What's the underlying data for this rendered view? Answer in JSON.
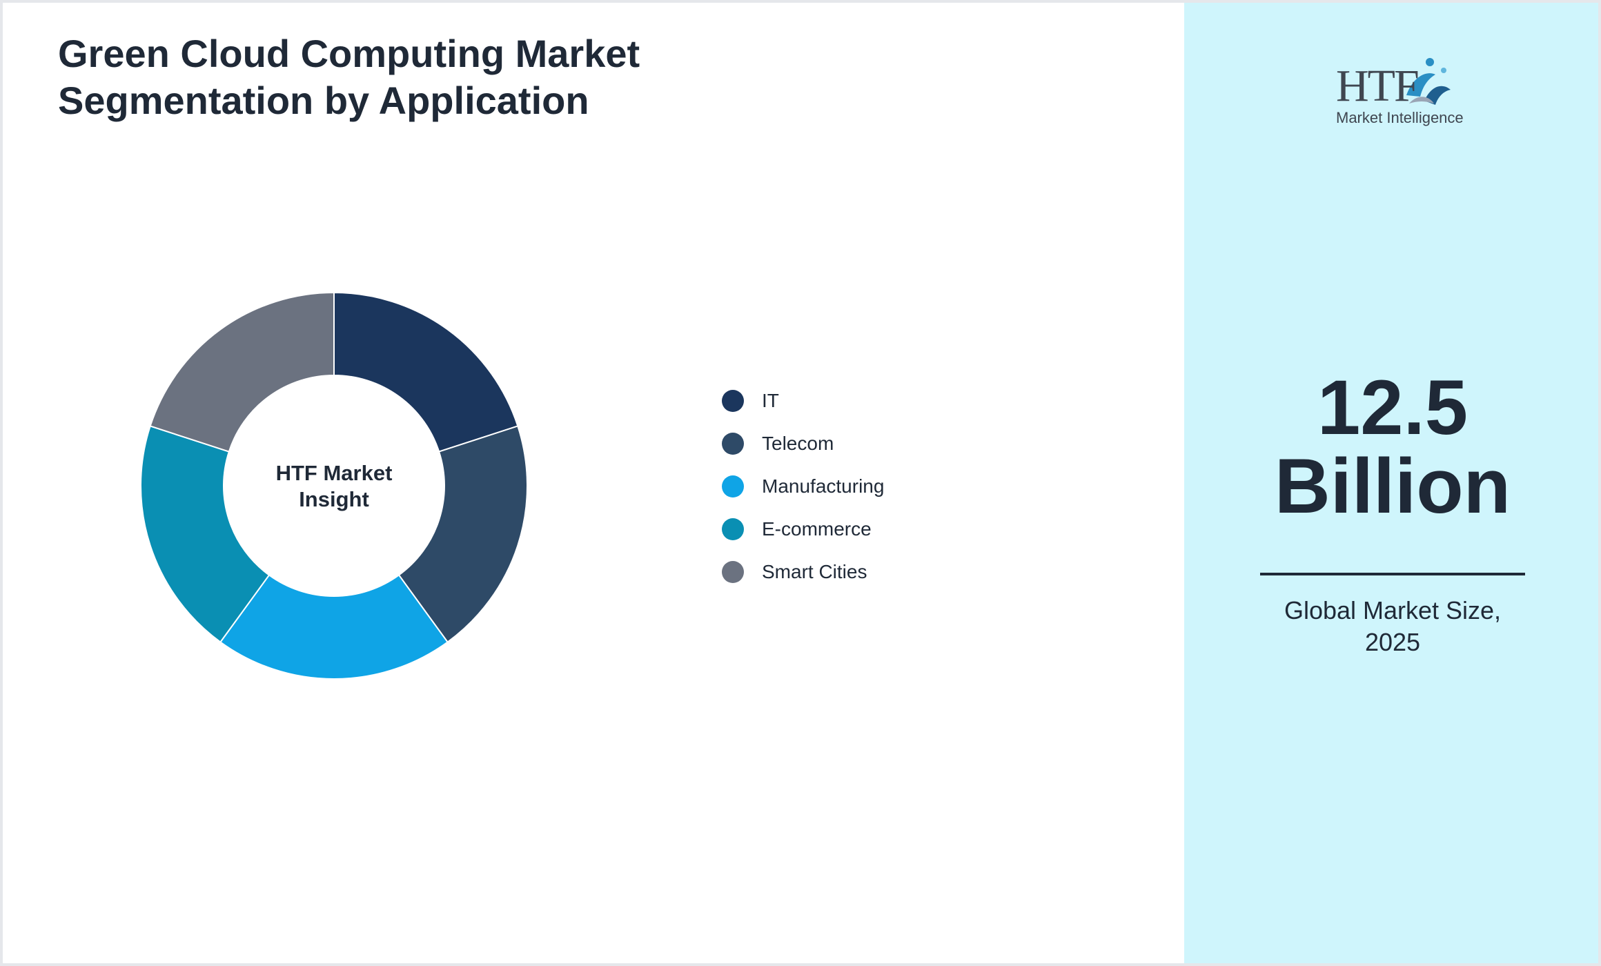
{
  "header": {
    "title_line1": "Green Cloud Computing Market",
    "title_line2": "Segmentation by Application"
  },
  "chart_data": {
    "type": "pie",
    "variant": "donut",
    "title": "Green Cloud Computing Market Segmentation by Application",
    "center_label_line1": "HTF Market",
    "center_label_line2": "Insight",
    "categories": [
      "IT",
      "Telecom",
      "Manufacturing",
      "E-commerce",
      "Smart Cities"
    ],
    "values": [
      20,
      20,
      20,
      20,
      20
    ],
    "colors": [
      "#1b365d",
      "#2e4a67",
      "#0fa4e6",
      "#0a8fb3",
      "#6b7280"
    ],
    "legend_position": "right"
  },
  "logo": {
    "brand": "HTF",
    "tagline": "Market Intelligence"
  },
  "kpi": {
    "value": "12.5",
    "unit": "Billion",
    "caption_line1": "Global Market Size,",
    "caption_line2": "2025"
  }
}
